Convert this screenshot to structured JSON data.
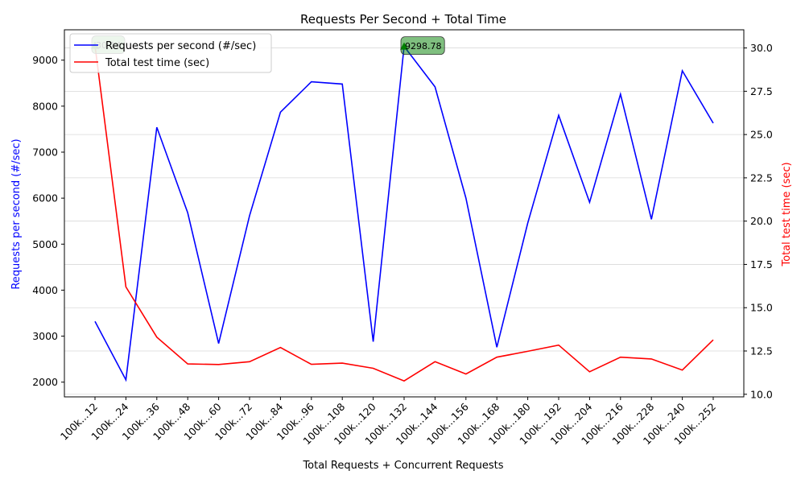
{
  "chart_data": {
    "type": "line",
    "title": "Requests Per Second + Total Time",
    "xlabel": "Total Requests + Concurrent Requests",
    "ylabel_left": "Requests per second (#/sec)",
    "ylabel_right": "Total test time (sec)",
    "categories": [
      "100k...12",
      "100k...24",
      "100k...36",
      "100k...48",
      "100k...60",
      "100k...72",
      "100k...84",
      "100k...96",
      "100k...108",
      "100k...120",
      "100k...132",
      "100k...144",
      "100k...156",
      "100k...168",
      "100k...180",
      "100k...192",
      "100k...204",
      "100k...216",
      "100k...228",
      "100k...240",
      "100k...252"
    ],
    "series": [
      {
        "name": "Requests per second (#/sec)",
        "axis": "left",
        "color": "#0000ff",
        "values": [
          3320,
          2050,
          7540,
          5680,
          2840,
          5620,
          7870,
          8530,
          8480,
          2880,
          9298.78,
          8420,
          6000,
          2760,
          5460,
          7800,
          5910,
          8260,
          5540,
          8770,
          7630
        ]
      },
      {
        "name": "Total test time (sec)",
        "axis": "right",
        "color": "#ff0000",
        "values": [
          30.14,
          16.2,
          13.3,
          11.75,
          11.72,
          11.88,
          12.7,
          11.73,
          11.8,
          11.5,
          10.77,
          11.88,
          11.17,
          12.14,
          12.48,
          12.84,
          11.3,
          12.14,
          12.04,
          11.4,
          13.14
        ]
      }
    ],
    "ylim_left": [
      1680,
      9660
    ],
    "ylim_right": [
      9.85,
      31.05
    ],
    "yticks_left": [
      2000,
      3000,
      4000,
      5000,
      6000,
      7000,
      8000,
      9000
    ],
    "yticks_right": [
      "10.0",
      "12.5",
      "15.0",
      "17.5",
      "20.0",
      "22.5",
      "25.0",
      "27.5",
      "30.0"
    ],
    "annotations": [
      {
        "index": 0,
        "axis": "right",
        "value": 30.14,
        "text": "30.14"
      },
      {
        "index": 10,
        "axis": "left",
        "value": 9298.78,
        "text": "9298.78"
      }
    ],
    "legend_position": "upper-left",
    "grid": "horizontal (right axis)",
    "annotation_color": "#008000"
  }
}
